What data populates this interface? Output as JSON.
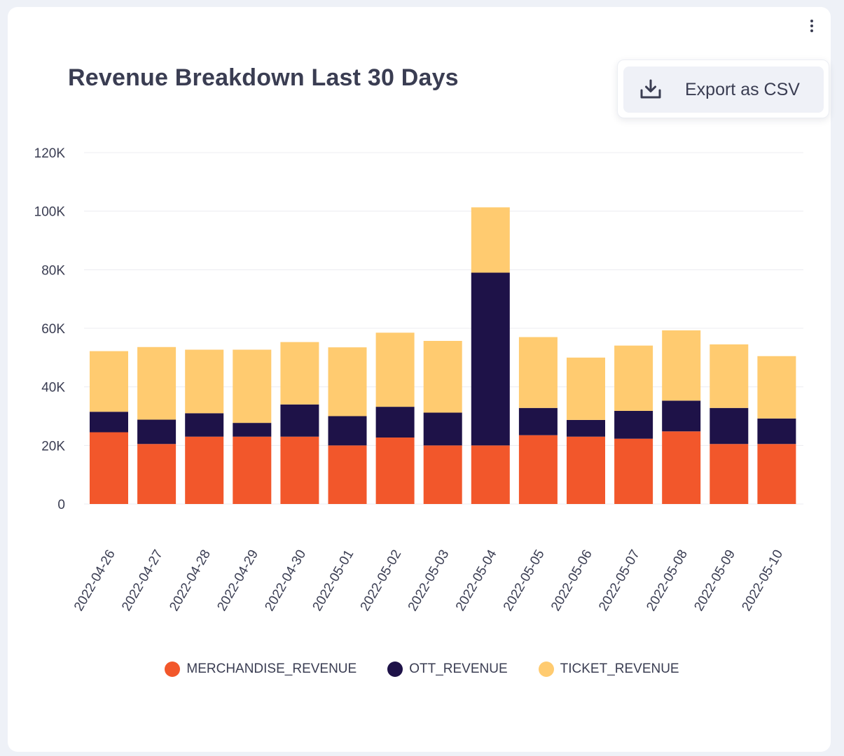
{
  "title": "Revenue Breakdown Last 30 Days",
  "menu": {
    "export_label": "Export as CSV",
    "export_icon": "download-tray-icon",
    "more_icon": "kebab-menu-icon"
  },
  "colors": {
    "merchandise": "#f2572b",
    "ott": "#1e1248",
    "ticket": "#ffcb70",
    "grid": "#ececf0",
    "axis_text": "#3a3d52"
  },
  "chart_data": {
    "type": "bar",
    "stacked": true,
    "title": "Revenue Breakdown Last 30 Days",
    "xlabel": "",
    "ylabel": "",
    "ylim": [
      0,
      120000
    ],
    "yticks": [
      {
        "value": 0,
        "label": "0"
      },
      {
        "value": 20000,
        "label": "20K"
      },
      {
        "value": 40000,
        "label": "40K"
      },
      {
        "value": 60000,
        "label": "60K"
      },
      {
        "value": 80000,
        "label": "80K"
      },
      {
        "value": 100000,
        "label": "100K"
      },
      {
        "value": 120000,
        "label": "120K"
      }
    ],
    "grid": true,
    "legend_position": "bottom",
    "categories": [
      "2022-04-26",
      "2022-04-27",
      "2022-04-28",
      "2022-04-29",
      "2022-04-30",
      "2022-05-01",
      "2022-05-02",
      "2022-05-03",
      "2022-05-04",
      "2022-05-05",
      "2022-05-06",
      "2022-05-07",
      "2022-05-08",
      "2022-05-09",
      "2022-05-10"
    ],
    "series": [
      {
        "name": "MERCHANDISE_REVENUE",
        "color": "#f2572b",
        "values": [
          24500,
          20500,
          23000,
          23000,
          23000,
          20000,
          22700,
          20000,
          20000,
          23500,
          23000,
          22300,
          24800,
          20500,
          20500
        ]
      },
      {
        "name": "OTT_REVENUE",
        "color": "#1e1248",
        "values": [
          7000,
          8300,
          8000,
          4700,
          11000,
          10000,
          10500,
          11200,
          59000,
          9300,
          5700,
          9500,
          10500,
          12300,
          8700
        ]
      },
      {
        "name": "TICKET_REVENUE",
        "color": "#ffcb70",
        "values": [
          20700,
          24800,
          21700,
          25000,
          21300,
          23500,
          25300,
          24500,
          22300,
          24200,
          21300,
          22300,
          24000,
          21700,
          21300
        ]
      }
    ]
  }
}
